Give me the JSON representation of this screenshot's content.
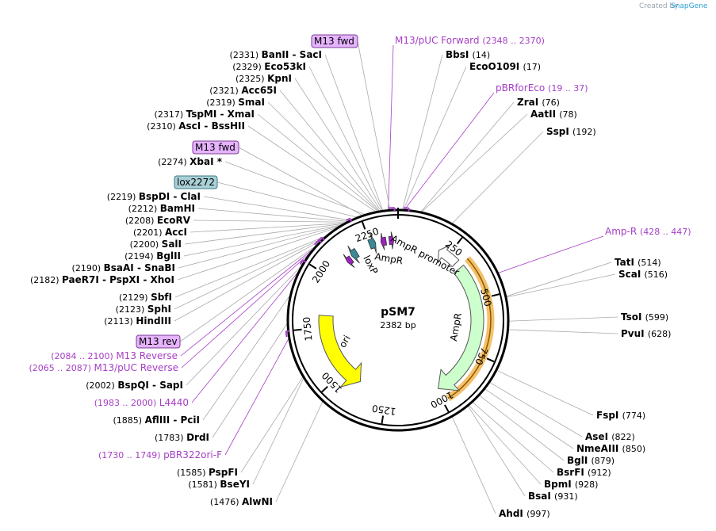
{
  "brand": {
    "created_by": "Created by",
    "app": "SnapGene"
  },
  "plasmid": {
    "name": "pSM7",
    "size": "2382 bp",
    "length": 2382
  },
  "ticks": [
    "250",
    "500",
    "750",
    "1000",
    "1250",
    "1500",
    "1750",
    "2000",
    "2250"
  ],
  "features": [
    {
      "name": "AmpR",
      "label": "AmpR"
    },
    {
      "name": "AmpR promoter",
      "label": "AmpR promoter"
    },
    {
      "name": "ori",
      "label": "ori"
    },
    {
      "name": "loxP",
      "label": "loxP"
    },
    {
      "name": "AmpR-small",
      "label": "AmpR"
    }
  ],
  "boxed_labels": [
    {
      "text": "M13 fwd",
      "color": "#e6b3ff"
    },
    {
      "text": "M13 fwd",
      "color": "#e6b3ff"
    },
    {
      "text": "lox2272",
      "color": "#a9d0d6"
    },
    {
      "text": "M13 rev",
      "color": "#e6b3ff"
    }
  ],
  "left_sites": [
    {
      "pos": "(2331)",
      "name": "BanII",
      "extra": "- SacI"
    },
    {
      "pos": "(2329)",
      "name": "Eco53kI",
      "extra": ""
    },
    {
      "pos": "(2325)",
      "name": "KpnI",
      "extra": ""
    },
    {
      "pos": "(2321)",
      "name": "Acc65I",
      "extra": ""
    },
    {
      "pos": "(2319)",
      "name": "SmaI",
      "extra": ""
    },
    {
      "pos": "(2317)",
      "name": "TspMI",
      "extra": "- XmaI"
    },
    {
      "pos": "(2310)",
      "name": "AscI",
      "extra": "- BssHII"
    },
    {
      "pos": "(2274)",
      "name": "XbaI *",
      "extra": ""
    },
    {
      "pos": "(2219)",
      "name": "BspDI",
      "extra": "- ClaI"
    },
    {
      "pos": "(2212)",
      "name": "BamHI",
      "extra": ""
    },
    {
      "pos": "(2208)",
      "name": "EcoRV",
      "extra": ""
    },
    {
      "pos": "(2201)",
      "name": "AccI",
      "extra": ""
    },
    {
      "pos": "(2200)",
      "name": "SalI",
      "extra": ""
    },
    {
      "pos": "(2194)",
      "name": "BglII",
      "extra": ""
    },
    {
      "pos": "(2190)",
      "name": "BsaAI",
      "extra": "- SnaBI"
    },
    {
      "pos": "(2182)",
      "name": "PaeR7I",
      "extra": "- PspXI  - XhoI"
    },
    {
      "pos": "(2129)",
      "name": "SbfI",
      "extra": ""
    },
    {
      "pos": "(2123)",
      "name": "SphI",
      "extra": ""
    },
    {
      "pos": "(2113)",
      "name": "HindIII",
      "extra": ""
    },
    {
      "pos": "(2002)",
      "name": "BspQI",
      "extra": "- SapI"
    },
    {
      "pos": "(1885)",
      "name": "AflIII",
      "extra": "- PciI"
    },
    {
      "pos": "(1783)",
      "name": "DrdI",
      "extra": ""
    },
    {
      "pos": "(1585)",
      "name": "PspFI",
      "extra": ""
    },
    {
      "pos": "(1581)",
      "name": "BseYI",
      "extra": ""
    },
    {
      "pos": "(1476)",
      "name": "AlwNI",
      "extra": ""
    }
  ],
  "left_primers": [
    {
      "range": "(2084 .. 2100)",
      "name": "M13 Reverse"
    },
    {
      "range": "(2065 .. 2087)",
      "name": "M13/pUC Reverse"
    },
    {
      "range": "(1983 .. 2000)",
      "name": "L4440"
    },
    {
      "range": "(1730 .. 1749)",
      "name": "pBR322ori-F"
    }
  ],
  "right_sites": [
    {
      "pos": "(14)",
      "name": "BbsI"
    },
    {
      "pos": "(17)",
      "name": "EcoO109I"
    },
    {
      "pos": "(76)",
      "name": "ZraI"
    },
    {
      "pos": "(78)",
      "name": "AatII"
    },
    {
      "pos": "(192)",
      "name": "SspI"
    },
    {
      "pos": "(514)",
      "name": "TatI"
    },
    {
      "pos": "(516)",
      "name": "ScaI"
    },
    {
      "pos": "(599)",
      "name": "TsoI"
    },
    {
      "pos": "(628)",
      "name": "PvuI"
    },
    {
      "pos": "(774)",
      "name": "FspI"
    },
    {
      "pos": "(822)",
      "name": "AseI"
    },
    {
      "pos": "(850)",
      "name": "NmeAIII"
    },
    {
      "pos": "(879)",
      "name": "BglI"
    },
    {
      "pos": "(912)",
      "name": "BsrFI"
    },
    {
      "pos": "(928)",
      "name": "BpmI"
    },
    {
      "pos": "(931)",
      "name": "BsaI"
    },
    {
      "pos": "(997)",
      "name": "AhdI"
    }
  ],
  "right_primers": [
    {
      "name": "M13/pUC Forward",
      "range": "(2348 .. 2370)"
    },
    {
      "name": "pBRforEco",
      "range": "(19 .. 37)"
    },
    {
      "name": "Amp-R",
      "range": "(428 .. 447)"
    }
  ],
  "colors": {
    "primer": "#a63ec6",
    "ampr": "#ccffcc",
    "ori": "#ffff00",
    "loxp": "#3a8a96",
    "highlight": "#f5a623"
  }
}
